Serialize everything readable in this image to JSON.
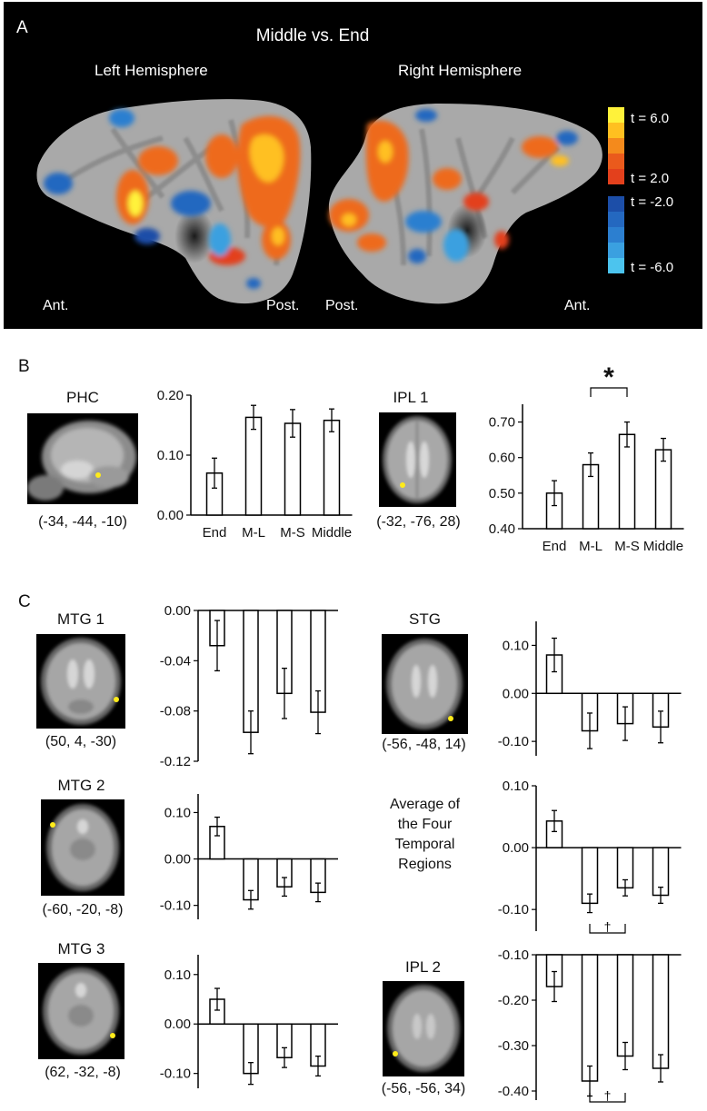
{
  "panel_a": {
    "letter": "A",
    "title": "Middle vs. End",
    "left_label": "Left Hemisphere",
    "right_label": "Right Hemisphere",
    "orient": {
      "left_ant": "Ant.",
      "left_post": "Post.",
      "right_post": "Post.",
      "right_ant": "Ant."
    },
    "colorbar": {
      "labels": [
        "t = 6.0",
        "t = 2.0",
        "t = -2.0",
        "t = -6.0"
      ],
      "warm_colors": [
        "#fff23a",
        "#ffc020",
        "#f48a1c",
        "#ea5a1c",
        "#e3401c"
      ],
      "cool_colors": [
        "#1c4ea8",
        "#2468c0",
        "#2c7fd0",
        "#3aa0e0",
        "#4cc4ee"
      ]
    }
  },
  "panel_b": {
    "letter": "B",
    "regions": [
      {
        "name": "PHC",
        "coords": "(-34, -44, -10)"
      },
      {
        "name": "IPL 1",
        "coords": "(-32, -76, 28)"
      }
    ]
  },
  "panel_c": {
    "letter": "C",
    "regions": [
      {
        "name": "MTG 1",
        "coords": "(50, 4, -30)"
      },
      {
        "name": "STG",
        "coords": "(-56, -48, 14)"
      },
      {
        "name": "MTG 2",
        "coords": "(-60, -20, -8)"
      },
      {
        "name": "MTG 3",
        "coords": "(62, -32, -8)"
      },
      {
        "name": "IPL 2",
        "coords": "(-56, -56, 34)"
      }
    ],
    "average_label": [
      "Average of",
      "the Four",
      "Temporal",
      "Regions"
    ]
  },
  "chart_data": [
    {
      "id": "phc",
      "type": "bar",
      "categories": [
        "End",
        "M-L",
        "M-S",
        "Middle"
      ],
      "values": [
        0.07,
        0.163,
        0.153,
        0.158
      ],
      "errors": [
        0.025,
        0.02,
        0.023,
        0.019
      ],
      "ylim": [
        0.0,
        0.2
      ],
      "yticks": [
        "0.20",
        "0.10",
        "0.00"
      ],
      "ytick_values": [
        0.2,
        0.1,
        0.0
      ],
      "baseline": 0.0,
      "show_categories": true
    },
    {
      "id": "ipl1",
      "type": "bar",
      "categories": [
        "End",
        "M-L",
        "M-S",
        "Middle"
      ],
      "values": [
        0.5,
        0.58,
        0.665,
        0.622
      ],
      "errors": [
        0.035,
        0.033,
        0.035,
        0.032
      ],
      "ylim": [
        0.4,
        0.75
      ],
      "yticks": [
        "0.70",
        "0.60",
        "0.50",
        "0.40"
      ],
      "ytick_values": [
        0.7,
        0.6,
        0.5,
        0.4
      ],
      "baseline": 0.4,
      "show_categories": true,
      "significance": {
        "from": 1,
        "to": 2,
        "mark": "*"
      }
    },
    {
      "id": "mtg1",
      "type": "bar",
      "categories": [
        "End",
        "M-L",
        "M-S",
        "Middle"
      ],
      "values": [
        -0.028,
        -0.097,
        -0.066,
        -0.081
      ],
      "errors": [
        0.02,
        0.017,
        0.02,
        0.017
      ],
      "ylim": [
        -0.12,
        0.0
      ],
      "yticks": [
        "0.00",
        "-0.04",
        "-0.08",
        "-0.12"
      ],
      "ytick_values": [
        0.0,
        -0.04,
        -0.08,
        -0.12
      ],
      "baseline": 0.0,
      "show_categories": false
    },
    {
      "id": "stg",
      "type": "bar",
      "categories": [
        "End",
        "M-L",
        "M-S",
        "Middle"
      ],
      "values": [
        0.08,
        -0.078,
        -0.063,
        -0.07
      ],
      "errors": [
        0.035,
        0.037,
        0.035,
        0.033
      ],
      "ylim": [
        -0.13,
        0.15
      ],
      "yticks": [
        "0.10",
        "0.00",
        "-0.10"
      ],
      "ytick_values": [
        0.1,
        0.0,
        -0.1
      ],
      "baseline": 0.0,
      "show_categories": false
    },
    {
      "id": "mtg2",
      "type": "bar",
      "categories": [
        "End",
        "M-L",
        "M-S",
        "Middle"
      ],
      "values": [
        0.07,
        -0.088,
        -0.06,
        -0.072
      ],
      "errors": [
        0.02,
        0.02,
        0.02,
        0.02
      ],
      "ylim": [
        -0.13,
        0.14
      ],
      "yticks": [
        "0.10",
        "0.00",
        "-0.10"
      ],
      "ytick_values": [
        0.1,
        0.0,
        -0.1
      ],
      "baseline": 0.0,
      "show_categories": false
    },
    {
      "id": "average",
      "type": "bar",
      "categories": [
        "End",
        "M-L",
        "M-S",
        "Middle"
      ],
      "values": [
        0.043,
        -0.09,
        -0.065,
        -0.077
      ],
      "errors": [
        0.017,
        0.015,
        0.013,
        0.013
      ],
      "ylim": [
        -0.135,
        0.1
      ],
      "yticks": [
        "0.10",
        "0.00",
        "-0.10"
      ],
      "ytick_values": [
        0.1,
        0.0,
        -0.1
      ],
      "baseline": 0.0,
      "show_categories": false,
      "significance": {
        "from": 1,
        "to": 2,
        "mark": "†"
      }
    },
    {
      "id": "mtg3",
      "type": "bar",
      "categories": [
        "End",
        "M-L",
        "M-S",
        "Middle"
      ],
      "values": [
        0.05,
        -0.1,
        -0.068,
        -0.085
      ],
      "errors": [
        0.022,
        0.022,
        0.02,
        0.02
      ],
      "ylim": [
        -0.13,
        0.14
      ],
      "yticks": [
        "0.10",
        "0.00",
        "-0.10"
      ],
      "ytick_values": [
        0.1,
        0.0,
        -0.1
      ],
      "baseline": 0.0,
      "show_categories": false
    },
    {
      "id": "ipl2",
      "type": "bar",
      "categories": [
        "End",
        "M-L",
        "M-S",
        "Middle"
      ],
      "values": [
        -0.17,
        -0.378,
        -0.323,
        -0.35
      ],
      "errors": [
        0.033,
        0.033,
        0.03,
        0.03
      ],
      "ylim": [
        -0.42,
        -0.1
      ],
      "yticks": [
        "-0.10",
        "-0.20",
        "-0.30",
        "-0.40"
      ],
      "ytick_values": [
        -0.1,
        -0.2,
        -0.3,
        -0.4
      ],
      "baseline": -0.1,
      "show_categories": false,
      "significance": {
        "from": 1,
        "to": 2,
        "mark": "†"
      }
    }
  ]
}
